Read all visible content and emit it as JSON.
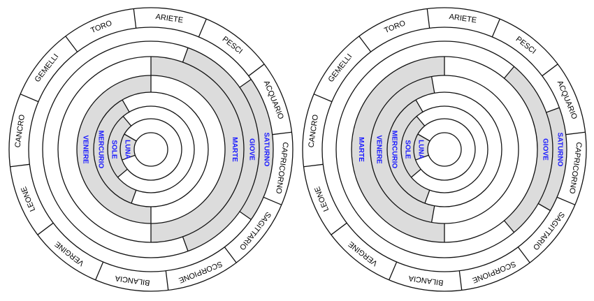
{
  "wheels": [
    {
      "signs": [
        "ARIETE",
        "TORO",
        "GEMELLI",
        "CANCRO",
        "LEONE",
        "VERGINE",
        "BILANCIA",
        "SCORPIONE",
        "SAGITTARIO",
        "CAPRICORNO",
        "ACQUARIO",
        "PESCI"
      ],
      "planets": [
        "LUNA",
        "SOLE",
        "MERCURIO",
        "VENERE",
        "MARTE",
        "GIOVE",
        "SATURNO"
      ]
    },
    {
      "signs": [
        "ARIETE",
        "TORO",
        "GEMELLI",
        "CANCRO",
        "LEONE",
        "VERGINE",
        "BILANCIA",
        "SCORPIONE",
        "SAGITTARIO",
        "CAPRICORNO",
        "ACQUARIO",
        "PESCI"
      ],
      "planets": [
        "LUNA",
        "SOLE",
        "MERCURIO",
        "VENERE",
        "MARTE",
        "GIOVE",
        "SATURNO"
      ]
    }
  ]
}
